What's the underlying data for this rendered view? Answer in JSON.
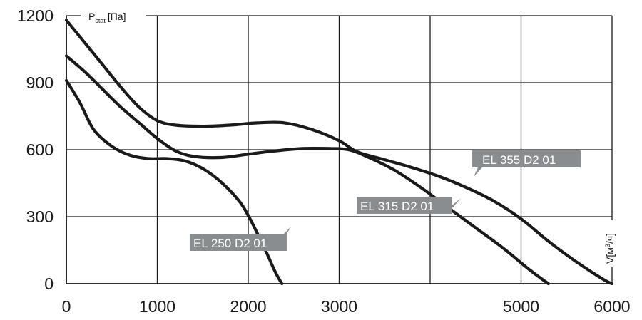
{
  "chart_data": {
    "type": "line",
    "title": "",
    "ylabel_main": "P",
    "ylabel_sub": "stat",
    "ylabel_unit": "[Па]",
    "xlabel_main": "V[м",
    "xlabel_sup": "3",
    "xlabel_unit": "/ч]",
    "x_ticks": [
      "0",
      "1000",
      "2000",
      "3000",
      "5000",
      "6000"
    ],
    "x_tick_values": [
      0,
      1000,
      2000,
      3000,
      4000,
      5000,
      6000
    ],
    "x_tick_labels": [
      "0",
      "1000",
      "2000",
      "3000",
      "",
      "5000",
      "6000"
    ],
    "y_ticks": [
      "0",
      "300",
      "600",
      "900",
      "1200"
    ],
    "y_tick_values": [
      0,
      300,
      600,
      900,
      1200
    ],
    "xlim": [
      0,
      6000
    ],
    "ylim": [
      0,
      1200
    ],
    "grid": true,
    "series": [
      {
        "name": "EL 250 D2 01",
        "x": [
          0,
          150,
          300,
          500,
          700,
          900,
          1100,
          1300,
          1500,
          1700,
          1900,
          2000,
          2100,
          2200,
          2300,
          2370
        ],
        "y": [
          910,
          810,
          690,
          615,
          575,
          560,
          560,
          550,
          515,
          455,
          370,
          305,
          225,
          140,
          50,
          0
        ]
      },
      {
        "name": "EL 315 D2 01",
        "x": [
          0,
          200,
          400,
          600,
          800,
          1000,
          1200,
          1400,
          1700,
          2000,
          2300,
          2600,
          2900,
          3100,
          3300,
          3600,
          3900,
          4200,
          4500,
          4800,
          5100,
          5300
        ],
        "y": [
          1020,
          950,
          870,
          790,
          720,
          650,
          595,
          570,
          565,
          580,
          595,
          605,
          605,
          600,
          570,
          510,
          430,
          340,
          250,
          160,
          60,
          0
        ]
      },
      {
        "name": "EL 355 D2 01",
        "x": [
          0,
          200,
          400,
          600,
          800,
          1000,
          1200,
          1500,
          1800,
          2100,
          2400,
          2700,
          3000,
          3200,
          3500,
          3800,
          4100,
          4400,
          4700,
          5000,
          5300,
          5600,
          5900,
          6000
        ],
        "y": [
          1180,
          1080,
          980,
          880,
          790,
          730,
          710,
          705,
          710,
          720,
          720,
          690,
          640,
          590,
          555,
          520,
          480,
          430,
          370,
          290,
          190,
          100,
          20,
          0
        ]
      }
    ],
    "annotations": [
      {
        "text": "EL 250 D2 01",
        "series": "EL 250 D2 01"
      },
      {
        "text": "EL 315 D2 01",
        "series": "EL 315 D2 01"
      },
      {
        "text": "EL 355 D2 01",
        "series": "EL 355 D2 01"
      }
    ],
    "colors": {
      "line": "#1a1a1a",
      "grid": "#1a1a1a",
      "tag_bg": "#8a8d8f",
      "tag_text": "#ffffff"
    }
  }
}
